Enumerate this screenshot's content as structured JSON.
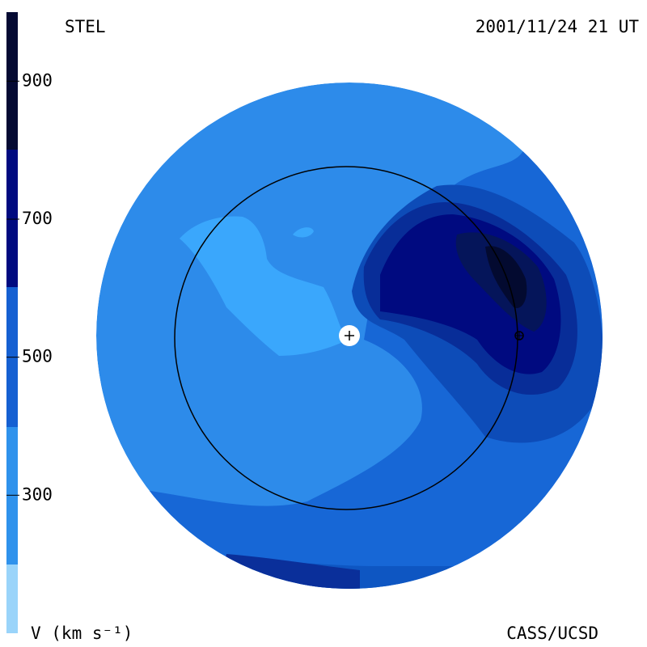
{
  "labels": {
    "observatory": "STEL",
    "timestamp": "2001/11/24 21 UT",
    "units": "V (km s⁻¹)",
    "credit": "CASS/UCSD"
  },
  "colorbar": {
    "ticks": [
      300,
      500,
      700,
      900
    ]
  }
}
